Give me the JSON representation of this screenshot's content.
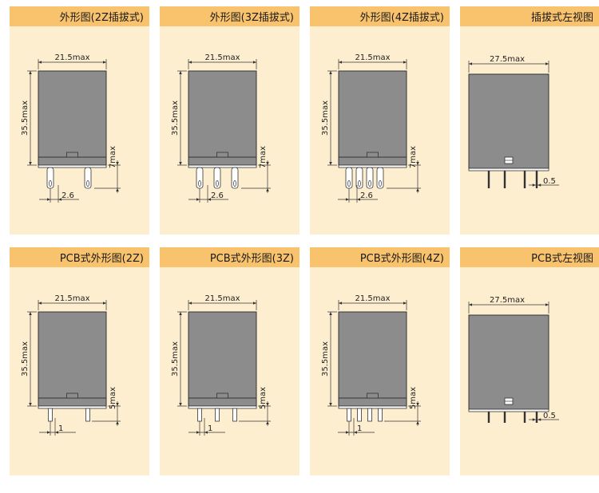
{
  "colors": {
    "header": "#f9c36e",
    "panel": "#fdeed0",
    "body": "#8c8c8c",
    "outline": "#333333"
  },
  "panels": [
    {
      "title": "外形图(2Z插拔式)",
      "type": "front",
      "mount": "plugin",
      "pins": 2,
      "width_label": "21.5max",
      "height_label": "35.5max",
      "pin_len_label": "7max",
      "pitch_label": "2.6"
    },
    {
      "title": "外形图(3Z插拔式)",
      "type": "front",
      "mount": "plugin",
      "pins": 3,
      "width_label": "21.5max",
      "height_label": "35.5max",
      "pin_len_label": "7max",
      "pitch_label": "2.6"
    },
    {
      "title": "外形图(4Z插拔式)",
      "type": "front",
      "mount": "plugin",
      "pins": 4,
      "width_label": "21.5max",
      "height_label": "35.5max",
      "pin_len_label": "7max",
      "pitch_label": "2.6"
    },
    {
      "title": "插拔式左视图",
      "type": "side",
      "mount": "plugin",
      "pins": 4,
      "width_label": "27.5max",
      "pitch_label": "0.5"
    },
    {
      "title": "PCB式外形图(2Z)",
      "type": "front",
      "mount": "pcb",
      "pins": 2,
      "width_label": "21.5max",
      "height_label": "35.5max",
      "pin_len_label": "5max",
      "pitch_label": "1"
    },
    {
      "title": "PCB式外形图(3Z)",
      "type": "front",
      "mount": "pcb",
      "pins": 3,
      "width_label": "21.5max",
      "height_label": "35.5max",
      "pin_len_label": "5max",
      "pitch_label": "1"
    },
    {
      "title": "PCB式外形图(4Z)",
      "type": "front",
      "mount": "pcb",
      "pins": 4,
      "width_label": "21.5max",
      "height_label": "35.5max",
      "pin_len_label": "5max",
      "pitch_label": "1"
    },
    {
      "title": "PCB式左视图",
      "type": "side",
      "mount": "pcb",
      "pins": 4,
      "width_label": "27.5max",
      "pitch_label": "0.5"
    }
  ]
}
